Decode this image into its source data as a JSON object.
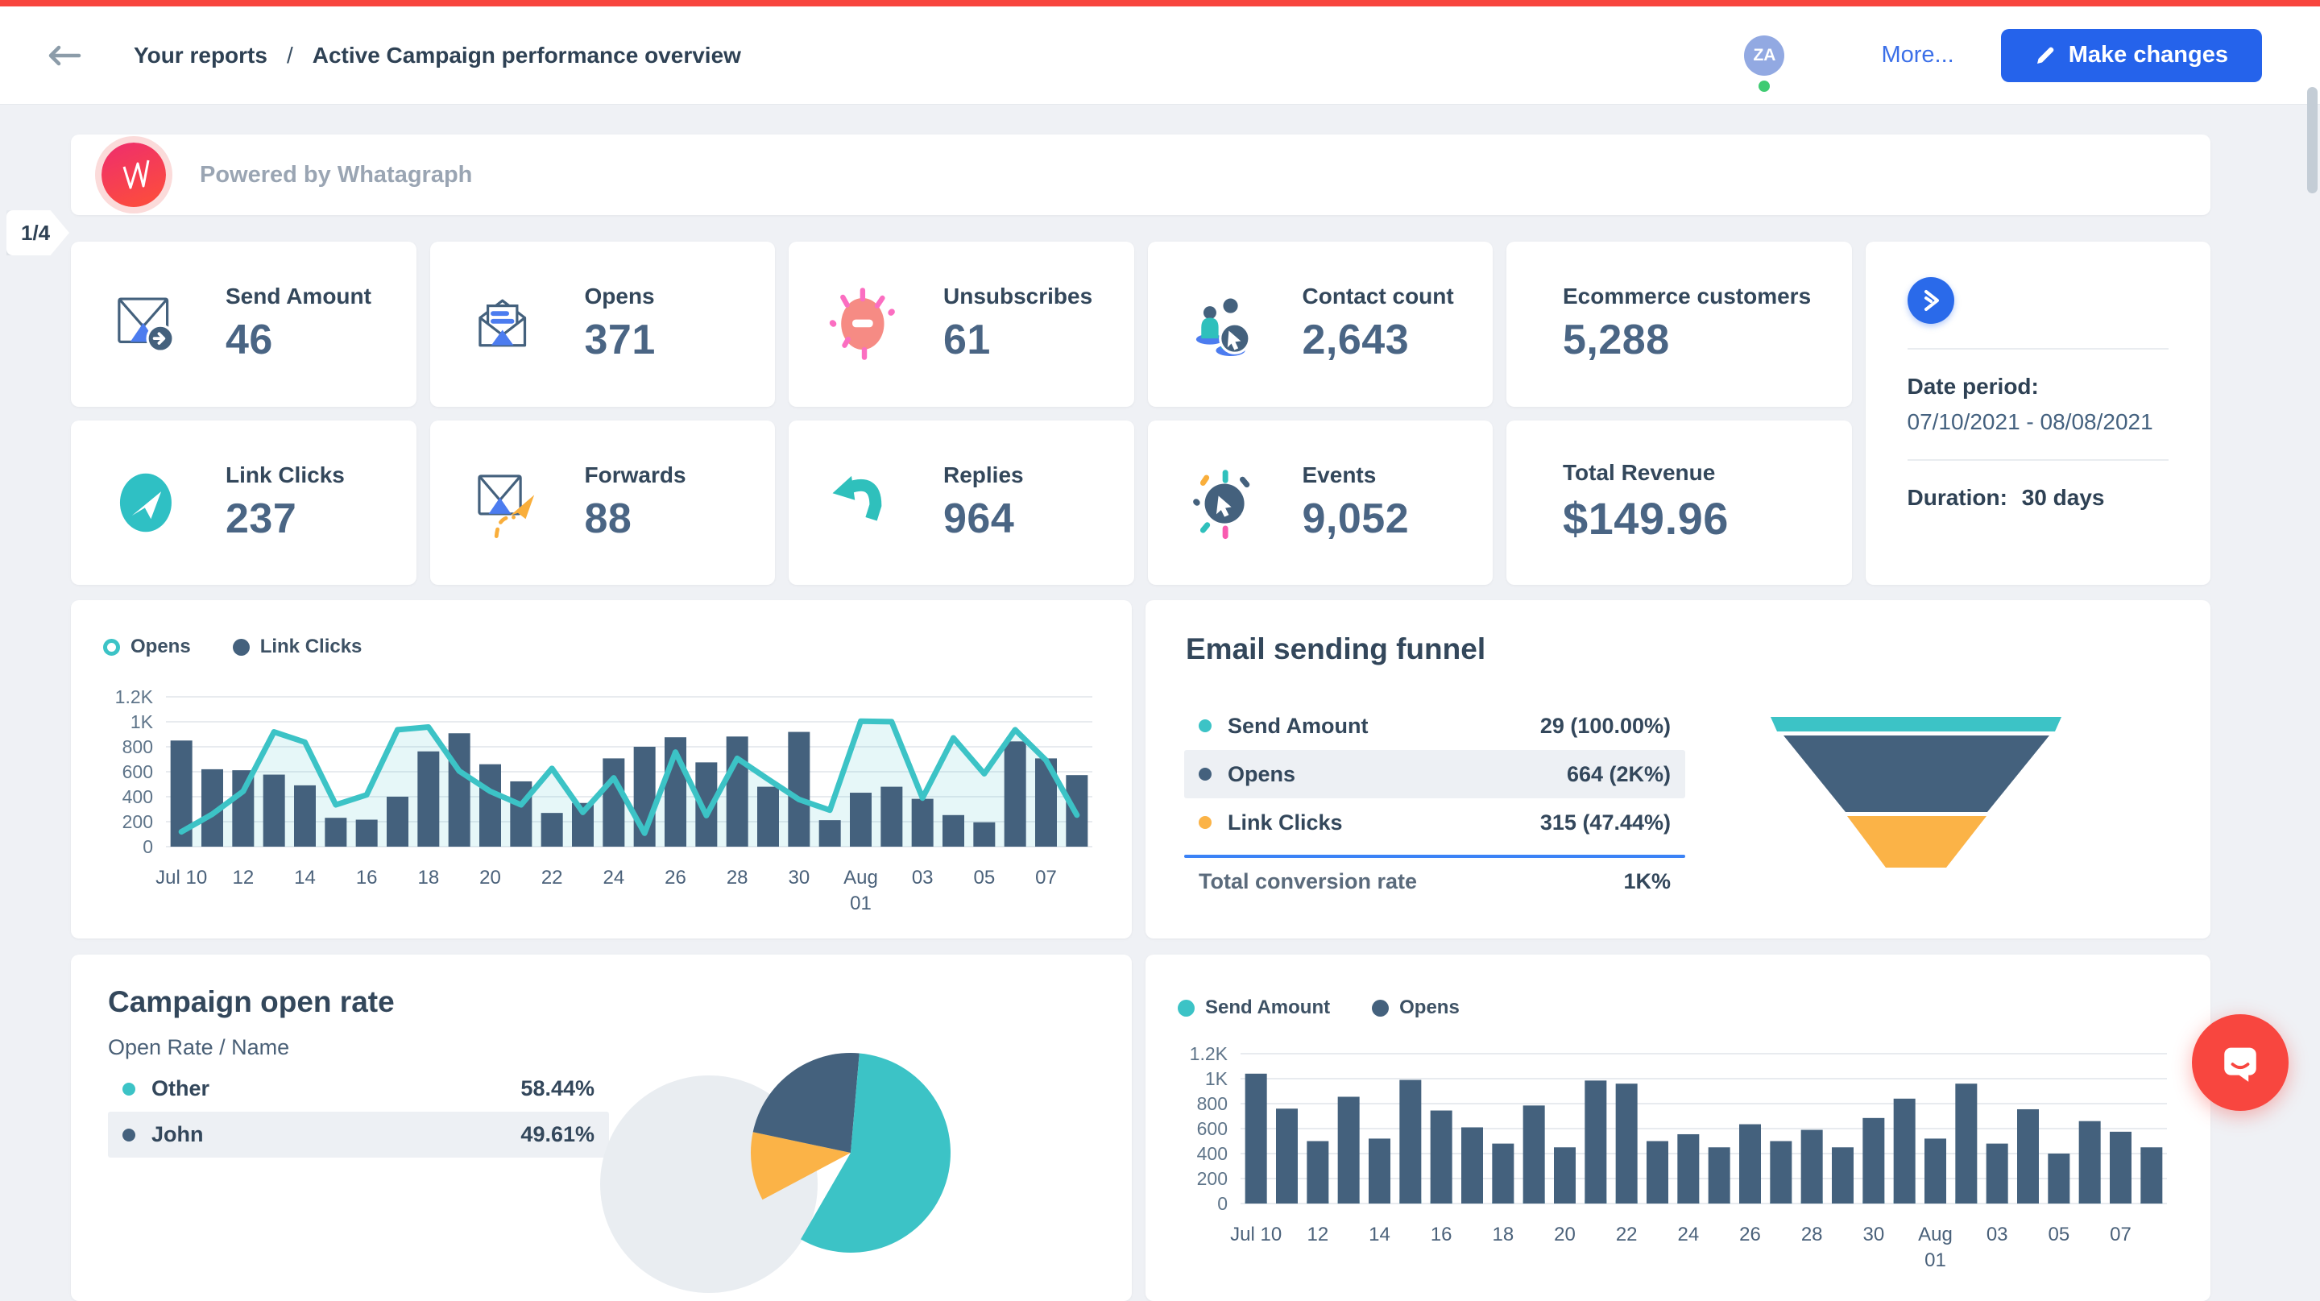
{
  "header": {
    "breadcrumb_section": "Your reports",
    "breadcrumb_separator": "/",
    "breadcrumb_page": "Active Campaign performance overview",
    "avatar_initials": "ZA",
    "more_label": "More...",
    "make_changes_label": "Make changes"
  },
  "banner": {
    "text": "Powered by Whatagraph",
    "logo_letter": "W"
  },
  "page_indicator": "1/4",
  "stats": {
    "cards": [
      {
        "id": "send-amount",
        "label": "Send Amount",
        "value": "46"
      },
      {
        "id": "opens",
        "label": "Opens",
        "value": "371"
      },
      {
        "id": "unsubscribes",
        "label": "Unsubscribes",
        "value": "61"
      },
      {
        "id": "contact-count",
        "label": "Contact count",
        "value": "2,643"
      },
      {
        "id": "ecommerce-customers",
        "label": "Ecommerce customers",
        "value": "5,288"
      },
      {
        "id": "link-clicks",
        "label": "Link Clicks",
        "value": "237"
      },
      {
        "id": "forwards",
        "label": "Forwards",
        "value": "88"
      },
      {
        "id": "replies",
        "label": "Replies",
        "value": "964"
      },
      {
        "id": "events",
        "label": "Events",
        "value": "9,052"
      },
      {
        "id": "total-revenue",
        "label": "Total Revenue",
        "value": "$149.96"
      }
    ]
  },
  "date_card": {
    "date_period_label": "Date period:",
    "date_period": "07/10/2021 - 08/08/2021",
    "duration_label": "Duration:",
    "duration_value": "30 days"
  },
  "colors": {
    "brand_red": "#F8453E",
    "primary_blue": "#2563EB",
    "teal": "#3CC3C6",
    "slate": "#44617D",
    "orange": "#FBB347",
    "salmon": "#F68B84",
    "pink": "#FB6EC1",
    "link_blue": "#3B6FE8",
    "status_green": "#3FCB72"
  },
  "chart_data": [
    {
      "id": "opens-vs-linkclicks-daily",
      "type": "combo",
      "legend_position": "top-left",
      "grid": true,
      "ylim": [
        0,
        1200
      ],
      "ytick_labels": [
        "0",
        "200",
        "400",
        "600",
        "800",
        "1K",
        "1.2K"
      ],
      "categories": [
        "Jul 10",
        "Jul 11",
        "Jul 12",
        "Jul 13",
        "Jul 14",
        "Jul 15",
        "Jul 16",
        "Jul 17",
        "Jul 18",
        "Jul 19",
        "Jul 20",
        "Jul 21",
        "Jul 22",
        "Jul 23",
        "Jul 24",
        "Jul 25",
        "Jul 26",
        "Jul 27",
        "Jul 28",
        "Jul 29",
        "Jul 30",
        "Jul 31",
        "Aug 01",
        "Aug 02",
        "Aug 03",
        "Aug 04",
        "Aug 05",
        "Aug 06",
        "Aug 07",
        "Aug 08"
      ],
      "x_tick_labels": [
        "Jul 10",
        "",
        "12",
        "",
        "14",
        "",
        "16",
        "",
        "18",
        "",
        "20",
        "",
        "22",
        "",
        "24",
        "",
        "26",
        "",
        "28",
        "",
        "30",
        "",
        "Aug|01",
        "",
        "03",
        "",
        "05",
        "",
        "07",
        ""
      ],
      "series": [
        {
          "name": "Opens",
          "type": "line",
          "color": "#3CC3C6",
          "values": [
            119,
            260,
            443,
            919,
            837,
            335,
            415,
            936,
            958,
            605,
            443,
            335,
            627,
            275,
            551,
            108,
            757,
            249,
            707,
            540,
            378,
            292,
            1005,
            1001,
            389,
            871,
            584,
            936,
            692,
            253
          ]
        },
        {
          "name": "Link Clicks",
          "type": "bar",
          "color": "#44617D",
          "values": [
            850,
            620,
            612,
            577,
            491,
            231,
            216,
            400,
            763,
            908,
            660,
            523,
            270,
            350,
            707,
            800,
            876,
            675,
            882,
            480,
            919,
            212,
            432,
            480,
            383,
            253,
            195,
            843,
            707,
            573
          ]
        }
      ]
    },
    {
      "id": "email-sending-funnel",
      "type": "funnel",
      "title": "Email sending funnel",
      "stages": [
        {
          "label": "Send Amount",
          "value": 29,
          "display": "29 (100.00%)",
          "color": "#3CC3C6"
        },
        {
          "label": "Opens",
          "value": 664,
          "display": "664 (2K%)",
          "color": "#44617D",
          "highlighted": true
        },
        {
          "label": "Link Clicks",
          "value": 315,
          "display": "315 (47.44%)",
          "color": "#FBB347"
        }
      ],
      "total_label": "Total conversion rate",
      "total_value": "1K%"
    },
    {
      "id": "campaign-open-rate",
      "type": "pie",
      "title": "Campaign open rate",
      "subtitle": "Open Rate / Name",
      "rows": [
        {
          "label": "Other",
          "value": 58.44,
          "display": "58.44%",
          "color": "#3CC3C6"
        },
        {
          "label": "John",
          "value": 49.61,
          "display": "49.61%",
          "color": "#44617D",
          "highlighted": true
        }
      ],
      "visible_slice_colors": [
        "#44617D",
        "#3CC3C6",
        "#FBB347",
        "#E9EDF1"
      ]
    },
    {
      "id": "sendamount-vs-opens-daily",
      "type": "combo",
      "legend_position": "top-left",
      "grid": true,
      "ylim": [
        0,
        1200
      ],
      "ytick_labels": [
        "0",
        "200",
        "400",
        "600",
        "800",
        "1K",
        "1.2K"
      ],
      "categories": [
        "Jul 10",
        "Jul 11",
        "Jul 12",
        "Jul 13",
        "Jul 14",
        "Jul 15",
        "Jul 16",
        "Jul 17",
        "Jul 18",
        "Jul 19",
        "Jul 20",
        "Jul 21",
        "Jul 22",
        "Jul 23",
        "Jul 24",
        "Jul 25",
        "Jul 26",
        "Jul 27",
        "Jul 28",
        "Jul 29",
        "Jul 30",
        "Jul 31",
        "Aug 01",
        "Aug 02",
        "Aug 03",
        "Aug 04",
        "Aug 05",
        "Aug 06",
        "Aug 07",
        "Aug 08"
      ],
      "x_tick_labels": [
        "Jul 10",
        "",
        "12",
        "",
        "14",
        "",
        "16",
        "",
        "18",
        "",
        "20",
        "",
        "22",
        "",
        "24",
        "",
        "26",
        "",
        "28",
        "",
        "30",
        "",
        "Aug|01",
        "",
        "03",
        "",
        "05",
        "",
        "07",
        ""
      ],
      "series": [
        {
          "name": "Send Amount",
          "type": "bar",
          "color": "#3CC3C6",
          "values": [
            15,
            22,
            18,
            25,
            12,
            30,
            20,
            16,
            14,
            24,
            11,
            28,
            26,
            13,
            17,
            10,
            19,
            12,
            21,
            9,
            23,
            27,
            14,
            29,
            11,
            25,
            8,
            20,
            18,
            10
          ]
        },
        {
          "name": "Opens",
          "type": "bar",
          "color": "#44617D",
          "values": [
            1040,
            760,
            500,
            855,
            520,
            990,
            745,
            610,
            480,
            785,
            450,
            985,
            960,
            500,
            555,
            450,
            635,
            500,
            590,
            450,
            685,
            840,
            520,
            960,
            480,
            755,
            400,
            660,
            575,
            450
          ]
        }
      ]
    }
  ]
}
